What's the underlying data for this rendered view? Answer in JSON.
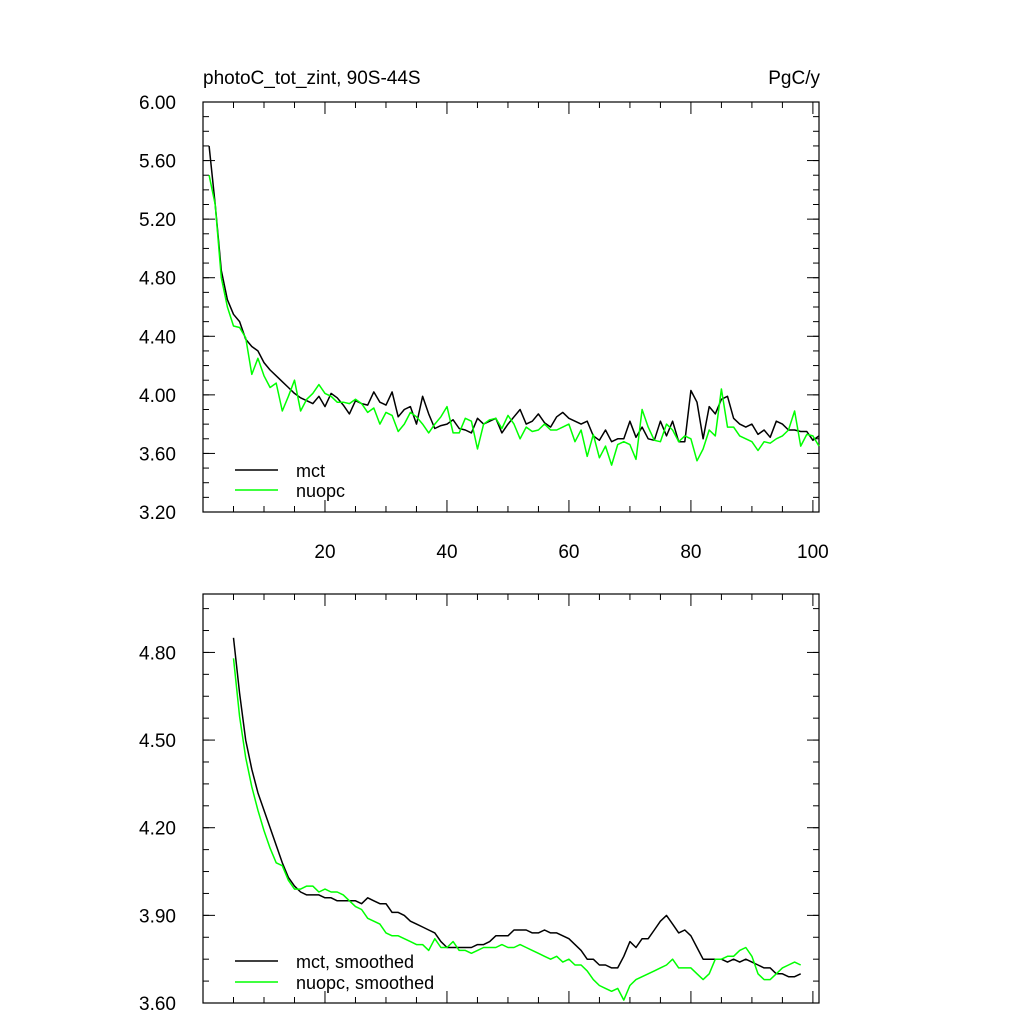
{
  "chart_data": [
    {
      "type": "line",
      "title": "photoC_tot_zint, 90S-44S",
      "units": "PgC/y",
      "xlim": [
        0,
        101
      ],
      "ylim": [
        3.2,
        6.0
      ],
      "xticks": [
        20,
        40,
        60,
        80,
        100
      ],
      "yticks": [
        3.2,
        3.6,
        4.0,
        4.4,
        4.8,
        5.2,
        5.6,
        6.0
      ],
      "xtick_labels": [
        "20",
        "40",
        "60",
        "80",
        "100"
      ],
      "ytick_labels": [
        "3.20",
        "3.60",
        "4.00",
        "4.40",
        "4.80",
        "5.20",
        "5.60",
        "6.00"
      ],
      "legend": [
        "mct",
        "nuopc"
      ],
      "legend_position": "bottom-left",
      "series": [
        {
          "name": "mct",
          "color": "#000000",
          "x": [
            1,
            2,
            3,
            4,
            5,
            6,
            7,
            8,
            9,
            10,
            11,
            12,
            13,
            14,
            15,
            16,
            17,
            18,
            19,
            20,
            21,
            22,
            23,
            24,
            25,
            26,
            27,
            28,
            29,
            30,
            31,
            32,
            33,
            34,
            35,
            36,
            37,
            38,
            39,
            40,
            41,
            42,
            43,
            44,
            45,
            46,
            47,
            48,
            49,
            50,
            51,
            52,
            53,
            54,
            55,
            56,
            57,
            58,
            59,
            60,
            61,
            62,
            63,
            64,
            65,
            66,
            67,
            68,
            69,
            70,
            71,
            72,
            73,
            74,
            75,
            76,
            77,
            78,
            79,
            80,
            81,
            82,
            83,
            84,
            85,
            86,
            87,
            88,
            89,
            90,
            91,
            92,
            93,
            94,
            95,
            96,
            97,
            98,
            99,
            100,
            101
          ],
          "values": [
            5.7,
            5.3,
            4.85,
            4.65,
            4.55,
            4.5,
            4.38,
            4.33,
            4.3,
            4.22,
            4.17,
            4.13,
            4.09,
            4.05,
            4.01,
            3.98,
            3.96,
            3.94,
            3.99,
            3.92,
            4.01,
            3.98,
            3.93,
            3.87,
            3.96,
            3.94,
            3.93,
            4.02,
            3.95,
            3.93,
            4.02,
            3.85,
            3.9,
            3.92,
            3.8,
            3.99,
            3.87,
            3.77,
            3.79,
            3.8,
            3.83,
            3.77,
            3.76,
            3.74,
            3.84,
            3.8,
            3.82,
            3.84,
            3.74,
            3.8,
            3.85,
            3.9,
            3.8,
            3.82,
            3.87,
            3.81,
            3.78,
            3.85,
            3.88,
            3.84,
            3.82,
            3.8,
            3.82,
            3.72,
            3.69,
            3.76,
            3.68,
            3.7,
            3.7,
            3.82,
            3.71,
            3.78,
            3.7,
            3.69,
            3.82,
            3.72,
            3.82,
            3.68,
            3.68,
            4.03,
            3.95,
            3.7,
            3.92,
            3.87,
            3.97,
            3.99,
            3.84,
            3.8,
            3.78,
            3.8,
            3.73,
            3.76,
            3.71,
            3.82,
            3.8,
            3.76,
            3.76,
            3.75,
            3.75,
            3.69,
            3.72
          ]
        },
        {
          "name": "nuopc",
          "color": "#00ff00",
          "x": [
            1,
            2,
            3,
            4,
            5,
            6,
            7,
            8,
            9,
            10,
            11,
            12,
            13,
            14,
            15,
            16,
            17,
            18,
            19,
            20,
            21,
            22,
            23,
            24,
            25,
            26,
            27,
            28,
            29,
            30,
            31,
            32,
            33,
            34,
            35,
            36,
            37,
            38,
            39,
            40,
            41,
            42,
            43,
            44,
            45,
            46,
            47,
            48,
            49,
            50,
            51,
            52,
            53,
            54,
            55,
            56,
            57,
            58,
            59,
            60,
            61,
            62,
            63,
            64,
            65,
            66,
            67,
            68,
            69,
            70,
            71,
            72,
            73,
            74,
            75,
            76,
            77,
            78,
            79,
            80,
            81,
            82,
            83,
            84,
            85,
            86,
            87,
            88,
            89,
            90,
            91,
            92,
            93,
            94,
            95,
            96,
            97,
            98,
            99,
            100,
            101
          ],
          "values": [
            5.5,
            5.3,
            4.8,
            4.6,
            4.47,
            4.46,
            4.39,
            4.14,
            4.25,
            4.13,
            4.05,
            4.08,
            3.89,
            3.99,
            4.1,
            3.89,
            3.97,
            4.01,
            4.07,
            4.01,
            3.99,
            3.95,
            3.95,
            3.94,
            3.97,
            3.94,
            3.88,
            3.91,
            3.8,
            3.88,
            3.86,
            3.75,
            3.8,
            3.88,
            3.85,
            3.8,
            3.74,
            3.8,
            3.85,
            3.92,
            3.74,
            3.74,
            3.84,
            3.82,
            3.63,
            3.8,
            3.83,
            3.84,
            3.77,
            3.86,
            3.8,
            3.7,
            3.78,
            3.75,
            3.76,
            3.8,
            3.76,
            3.76,
            3.78,
            3.8,
            3.68,
            3.76,
            3.58,
            3.73,
            3.57,
            3.65,
            3.52,
            3.66,
            3.68,
            3.66,
            3.56,
            3.9,
            3.78,
            3.69,
            3.68,
            3.8,
            3.76,
            3.68,
            3.72,
            3.7,
            3.55,
            3.63,
            3.76,
            3.72,
            4.04,
            3.78,
            3.78,
            3.72,
            3.7,
            3.68,
            3.62,
            3.68,
            3.67,
            3.7,
            3.72,
            3.76,
            3.89,
            3.65,
            3.73,
            3.72,
            3.65
          ]
        }
      ]
    },
    {
      "type": "line",
      "title": "",
      "xlim": [
        0,
        101
      ],
      "ylim": [
        3.6,
        5.0
      ],
      "xticks": [
        20,
        40,
        60,
        80,
        100
      ],
      "yticks": [
        3.6,
        3.9,
        4.2,
        4.5,
        4.8
      ],
      "ytick_labels": [
        "3.60",
        "3.90",
        "4.20",
        "4.50",
        "4.80"
      ],
      "legend": [
        "mct, smoothed",
        "nuopc, smoothed"
      ],
      "legend_position": "bottom-left",
      "series": [
        {
          "name": "mct, smoothed",
          "color": "#000000",
          "x": [
            5,
            6,
            7,
            8,
            9,
            10,
            11,
            12,
            13,
            14,
            15,
            16,
            17,
            18,
            19,
            20,
            21,
            22,
            23,
            24,
            25,
            26,
            27,
            28,
            29,
            30,
            31,
            32,
            33,
            34,
            35,
            36,
            37,
            38,
            39,
            40,
            41,
            42,
            43,
            44,
            45,
            46,
            47,
            48,
            49,
            50,
            51,
            52,
            53,
            54,
            55,
            56,
            57,
            58,
            59,
            60,
            61,
            62,
            63,
            64,
            65,
            66,
            67,
            68,
            69,
            70,
            71,
            72,
            73,
            74,
            75,
            76,
            77,
            78,
            79,
            80,
            81,
            82,
            83,
            84,
            85,
            86,
            87,
            88,
            89,
            90,
            91,
            92,
            93,
            94,
            95,
            96,
            97,
            98
          ],
          "values": [
            4.85,
            4.66,
            4.5,
            4.4,
            4.32,
            4.26,
            4.2,
            4.14,
            4.08,
            4.03,
            4.0,
            3.98,
            3.97,
            3.97,
            3.97,
            3.96,
            3.96,
            3.95,
            3.95,
            3.95,
            3.95,
            3.94,
            3.96,
            3.95,
            3.94,
            3.94,
            3.91,
            3.91,
            3.9,
            3.88,
            3.87,
            3.86,
            3.85,
            3.84,
            3.81,
            3.79,
            3.79,
            3.79,
            3.79,
            3.79,
            3.8,
            3.8,
            3.81,
            3.83,
            3.83,
            3.83,
            3.85,
            3.85,
            3.85,
            3.84,
            3.84,
            3.85,
            3.84,
            3.84,
            3.83,
            3.82,
            3.8,
            3.78,
            3.75,
            3.75,
            3.73,
            3.73,
            3.72,
            3.72,
            3.76,
            3.81,
            3.79,
            3.82,
            3.82,
            3.85,
            3.88,
            3.9,
            3.87,
            3.84,
            3.85,
            3.83,
            3.79,
            3.75,
            3.75,
            3.75,
            3.75,
            3.74,
            3.75,
            3.74,
            3.75,
            3.74,
            3.73,
            3.72,
            3.72,
            3.7,
            3.7,
            3.69,
            3.69,
            3.7
          ]
        },
        {
          "name": "nuopc, smoothed",
          "color": "#00ff00",
          "x": [
            5,
            6,
            7,
            8,
            9,
            10,
            11,
            12,
            13,
            14,
            15,
            16,
            17,
            18,
            19,
            20,
            21,
            22,
            23,
            24,
            25,
            26,
            27,
            28,
            29,
            30,
            31,
            32,
            33,
            34,
            35,
            36,
            37,
            38,
            39,
            40,
            41,
            42,
            43,
            44,
            45,
            46,
            47,
            48,
            49,
            50,
            51,
            52,
            53,
            54,
            55,
            56,
            57,
            58,
            59,
            60,
            61,
            62,
            63,
            64,
            65,
            66,
            67,
            68,
            69,
            70,
            71,
            72,
            73,
            74,
            75,
            76,
            77,
            78,
            79,
            80,
            81,
            82,
            83,
            84,
            85,
            86,
            87,
            88,
            89,
            90,
            91,
            92,
            93,
            94,
            95,
            96,
            97,
            98
          ],
          "values": [
            4.78,
            4.58,
            4.44,
            4.34,
            4.26,
            4.19,
            4.13,
            4.08,
            4.07,
            4.02,
            3.99,
            3.99,
            4.0,
            4.0,
            3.98,
            3.99,
            3.98,
            3.98,
            3.97,
            3.95,
            3.93,
            3.92,
            3.89,
            3.88,
            3.87,
            3.84,
            3.83,
            3.83,
            3.82,
            3.81,
            3.8,
            3.8,
            3.78,
            3.82,
            3.79,
            3.79,
            3.81,
            3.78,
            3.78,
            3.77,
            3.78,
            3.79,
            3.79,
            3.79,
            3.8,
            3.79,
            3.79,
            3.8,
            3.79,
            3.78,
            3.77,
            3.76,
            3.75,
            3.76,
            3.74,
            3.75,
            3.73,
            3.73,
            3.71,
            3.68,
            3.66,
            3.65,
            3.64,
            3.65,
            3.61,
            3.66,
            3.68,
            3.69,
            3.7,
            3.71,
            3.72,
            3.73,
            3.75,
            3.72,
            3.72,
            3.72,
            3.7,
            3.68,
            3.7,
            3.75,
            3.75,
            3.76,
            3.76,
            3.78,
            3.79,
            3.76,
            3.7,
            3.68,
            3.68,
            3.7,
            3.72,
            3.73,
            3.74,
            3.73
          ]
        }
      ]
    }
  ]
}
